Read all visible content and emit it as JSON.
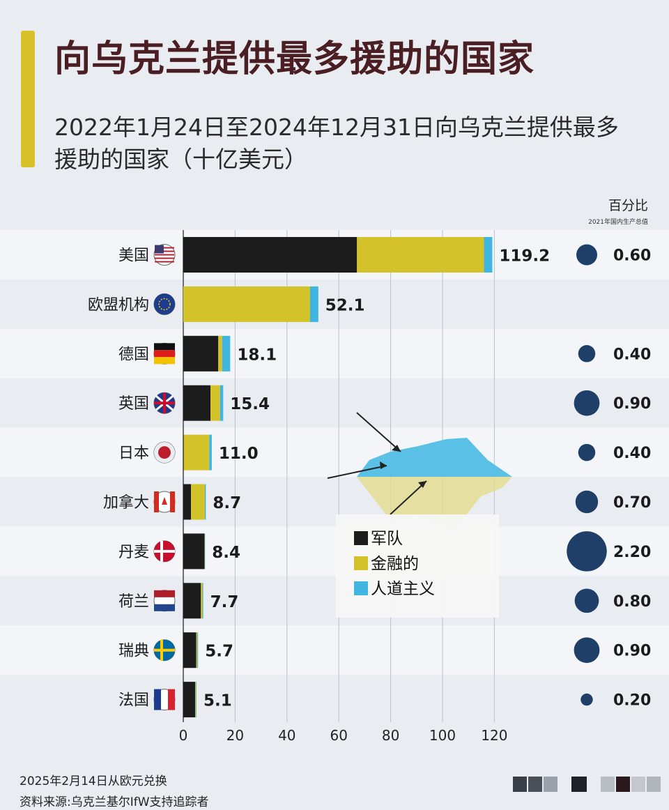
{
  "title": "向乌克兰提供最多援助的国家",
  "subtitle": "2022年1月24日至2024年12月31日向乌克兰提供最多援助的国家（十亿美元）",
  "pct_header": {
    "title": "百分比",
    "subtitle": "2021年国内生产总值"
  },
  "footer": {
    "line1": "2025年2月14日从欧元兑换",
    "line2": "资料来源:乌克兰基尔IfW支持追踪者"
  },
  "colors": {
    "military": "#1c1c1c",
    "financial": "#d4c22a",
    "humanitarian": "#3fb5e0",
    "bubble": "#1f3f68",
    "title": "#4a1e22",
    "accent": "#d8c12a"
  },
  "chart_data": {
    "type": "bar",
    "orientation": "horizontal",
    "stacked": true,
    "title": "向乌克兰提供最多援助的国家",
    "xlim": [
      0,
      120
    ],
    "x_ticks": [
      0,
      20,
      40,
      60,
      80,
      100,
      120
    ],
    "legend": {
      "position": "center-right",
      "items": [
        "军队",
        "金融的",
        "人道主义"
      ]
    },
    "categories": [
      "美国",
      "欧盟机构",
      "德国",
      "英国",
      "日本",
      "加拿大",
      "丹麦",
      "荷兰",
      "瑞典",
      "法国"
    ],
    "flags": [
      "us-flag-icon",
      "eu-flag-icon",
      "germany-flag-icon",
      "uk-flag-icon",
      "japan-flag-icon",
      "canada-flag-icon",
      "denmark-flag-icon",
      "netherlands-flag-icon",
      "sweden-flag-icon",
      "france-flag-icon"
    ],
    "series": [
      {
        "name": "军队",
        "values": [
          67.0,
          0.0,
          13.5,
          10.5,
          0.2,
          3.0,
          8.2,
          6.8,
          5.0,
          4.6
        ]
      },
      {
        "name": "金融的",
        "values": [
          49.0,
          48.9,
          1.5,
          3.7,
          9.8,
          5.3,
          0.1,
          0.6,
          0.4,
          0.3
        ]
      },
      {
        "name": "人道主义",
        "values": [
          3.2,
          3.2,
          3.1,
          1.2,
          1.0,
          0.4,
          0.1,
          0.3,
          0.3,
          0.2
        ]
      }
    ],
    "totals": [
      "119.2",
      "52.1",
      "18.1",
      "15.4",
      "11.0",
      "8.7",
      "8.4",
      "7.7",
      "5.7",
      "5.1"
    ],
    "gdp_percent": {
      "values": [
        0.6,
        0.4,
        0.9,
        0.4,
        0.7,
        2.2,
        0.8,
        0.9,
        0.2
      ],
      "labels": [
        "0.60",
        "0.40",
        "0.90",
        "0.40",
        "0.70",
        "2.20",
        "0.80",
        "0.90",
        "0.20"
      ],
      "row_index": [
        0,
        2,
        3,
        4,
        5,
        6,
        7,
        8,
        9
      ]
    }
  }
}
